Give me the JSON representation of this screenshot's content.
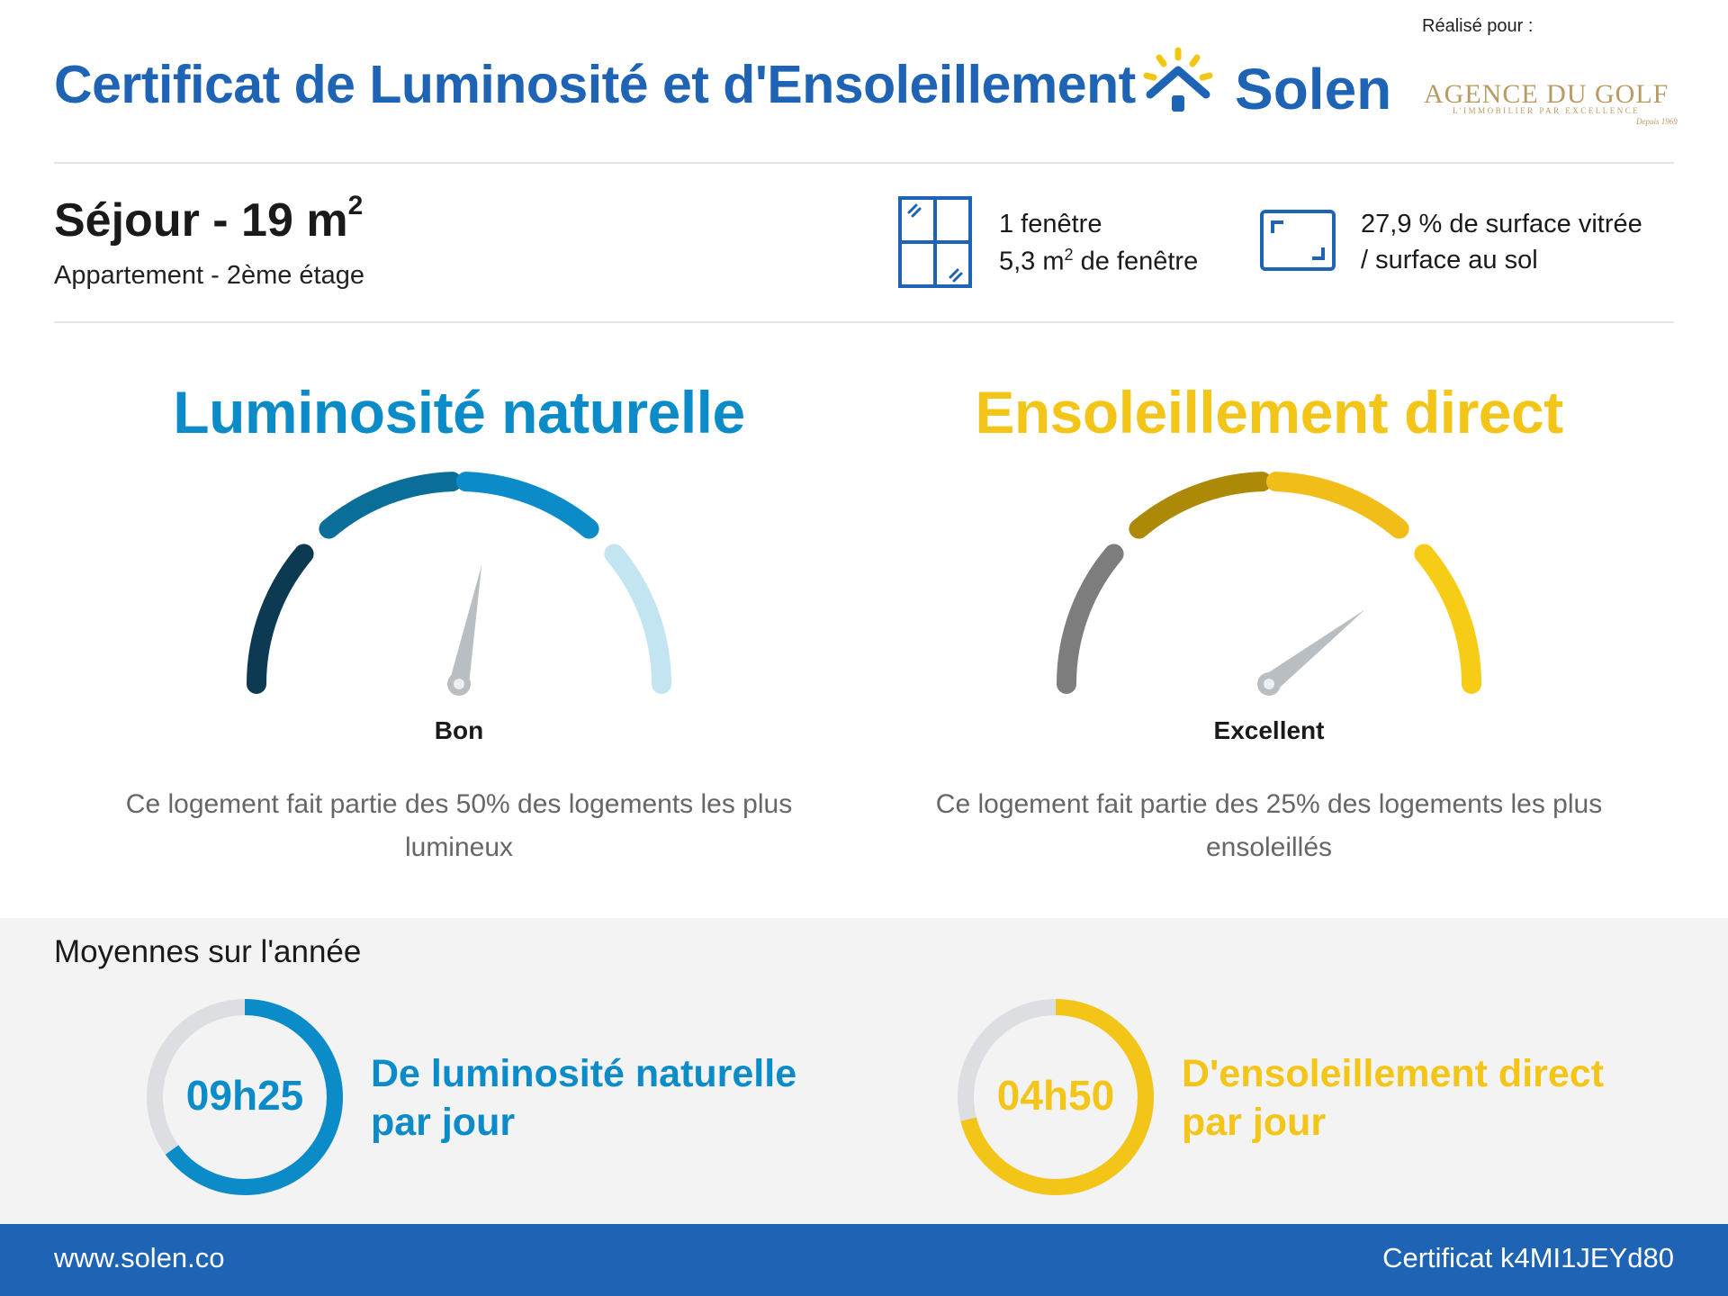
{
  "header": {
    "title": "Certificat de Luminosité et d'Ensoleillement",
    "brand": "Solen",
    "realise_pour": "Réalisé pour :",
    "agency": {
      "name": "AGENCE DU GOLF",
      "tagline": "L'IMMOBILIER PAR EXCELLENCE",
      "signature": "Depuis 1969"
    }
  },
  "room": {
    "name": "Séjour - 19 m",
    "name_sup": "2",
    "subtitle": "Appartement - 2ème étage"
  },
  "windows": {
    "count_text": "1 fenêtre",
    "area_prefix": "5,3 m",
    "area_sup": "2",
    "area_suffix": " de fenêtre"
  },
  "surface": {
    "line1": "27,9 % de surface vitrée",
    "line2": "/ surface au sol"
  },
  "luminosite": {
    "title": "Luminosité naturelle",
    "rating": "Bon",
    "description": "Ce logement fait partie des 50% des logements les plus lumineux",
    "color": "#0b8cc9",
    "segment_colors": [
      "#0b3a52",
      "#0a6e99",
      "#0b8cc9",
      "#c3e4f1"
    ],
    "needle_level": 0.56
  },
  "ensoleillement": {
    "title": "Ensoleillement direct",
    "rating": "Excellent",
    "description": "Ce logement fait partie des 25% des logements les plus ensoleillés",
    "color": "#f4c519",
    "segment_colors": [
      "#7d7d7d",
      "#ac8a07",
      "#f1bd19",
      "#f7cc17"
    ],
    "needle_level": 0.79
  },
  "averages": {
    "title": "Moyennes sur l'année",
    "luminosite": {
      "value": "09h25",
      "label_line1": "De luminosité naturelle",
      "label_line2": "par jour",
      "fraction": 0.65,
      "color": "#0b8cc9"
    },
    "ensoleillement": {
      "value": "04h50",
      "label_line1": "D'ensoleillement direct",
      "label_line2": "par jour",
      "fraction": 0.71,
      "color": "#f4c519"
    }
  },
  "footer": {
    "website": "www.solen.co",
    "certificate": "Certificat k4MI1JEYd80"
  }
}
